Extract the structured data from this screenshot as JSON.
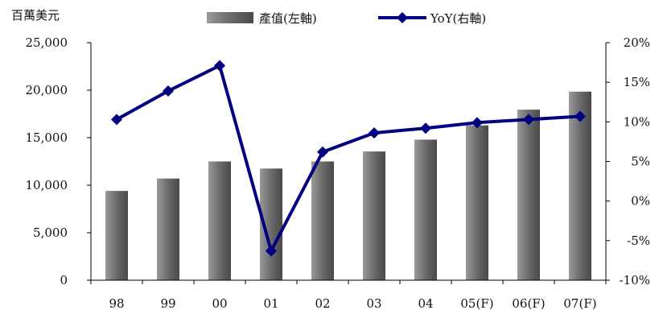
{
  "chart_data": {
    "type": "bar",
    "categories": [
      "98",
      "99",
      "00",
      "01",
      "02",
      "03",
      "04",
      "05(F)",
      "06(F)",
      "07(F)"
    ],
    "series": [
      {
        "name": "產值(左軸)",
        "type": "bar",
        "axis": "left",
        "values": [
          9400,
          10700,
          12500,
          11750,
          12500,
          13550,
          14800,
          16300,
          17950,
          19850
        ]
      },
      {
        "name": "YoY(右軸)",
        "type": "line",
        "axis": "right",
        "values": [
          10.3,
          13.9,
          17.1,
          -6.3,
          6.2,
          8.6,
          9.2,
          9.9,
          10.3,
          10.7
        ]
      }
    ],
    "left_axis": {
      "unit_label": "百萬美元",
      "ylim": [
        0,
        25000
      ],
      "ticks": [
        0,
        5000,
        10000,
        15000,
        20000,
        25000
      ],
      "tick_labels": [
        "0",
        "5,000",
        "10,000",
        "15,000",
        "20,000",
        "25,000"
      ]
    },
    "right_axis": {
      "ylim": [
        -10,
        20
      ],
      "ticks": [
        -10,
        -5,
        0,
        5,
        10,
        15,
        20
      ],
      "tick_labels": [
        "-10%",
        "-5%",
        "0%",
        "5%",
        "10%",
        "15%",
        "20%"
      ]
    },
    "grid": false,
    "legend_position": "top-center",
    "colors": {
      "bar": "#808080",
      "line": "#000080"
    }
  }
}
